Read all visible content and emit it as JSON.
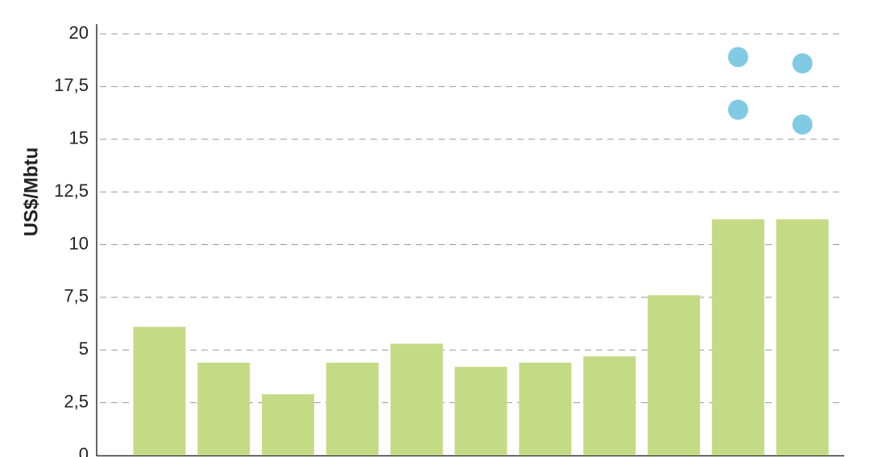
{
  "chart_data": {
    "type": "bar",
    "y_label": "US$/Mbtu",
    "categories": [
      null,
      null,
      null,
      null,
      null,
      null,
      null,
      null,
      null,
      null,
      null
    ],
    "series": [
      {
        "type": "bar",
        "color": "#c5da85",
        "values": [
          6.1,
          4.4,
          2.9,
          4.4,
          5.3,
          4.2,
          4.4,
          4.7,
          7.6,
          11.2,
          11.2
        ]
      },
      {
        "type": "scatter",
        "color": "#80cbe3",
        "values": [
          null,
          null,
          null,
          null,
          null,
          null,
          null,
          null,
          null,
          18.9,
          18.6
        ]
      },
      {
        "type": "scatter",
        "color": "#80cbe3",
        "values": [
          null,
          null,
          null,
          null,
          null,
          null,
          null,
          null,
          null,
          16.4,
          15.7
        ]
      }
    ],
    "ylim": [
      0,
      20
    ],
    "yticks": [
      0,
      {
        "value": 2.5,
        "label": "2,5"
      },
      5,
      {
        "value": 7.5,
        "label": "7,5"
      },
      10,
      {
        "value": 12.5,
        "label": "12,5"
      },
      15,
      {
        "value": 17.5,
        "label": "17,5"
      },
      20
    ],
    "grid": true
  }
}
